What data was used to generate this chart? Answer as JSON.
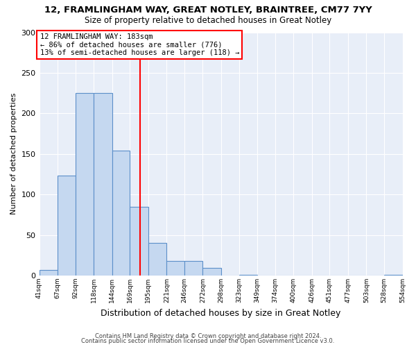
{
  "title": "12, FRAMLINGHAM WAY, GREAT NOTLEY, BRAINTREE, CM77 7YY",
  "subtitle": "Size of property relative to detached houses in Great Notley",
  "xlabel": "Distribution of detached houses by size in Great Notley",
  "ylabel": "Number of detached properties",
  "bin_edges": [
    41,
    67,
    92,
    118,
    144,
    169,
    195,
    221,
    246,
    272,
    298,
    323,
    349,
    374,
    400,
    426,
    451,
    477,
    503,
    528,
    554
  ],
  "bin_counts": [
    7,
    123,
    225,
    225,
    154,
    85,
    40,
    18,
    18,
    9,
    0,
    1,
    0,
    0,
    0,
    0,
    0,
    0,
    0,
    1
  ],
  "bar_color": "#c5d8f0",
  "bar_edge_color": "#5b8fc9",
  "vline_x": 183,
  "vline_color": "red",
  "ylim": [
    0,
    300
  ],
  "yticks": [
    0,
    50,
    100,
    150,
    200,
    250,
    300
  ],
  "annotation_title": "12 FRAMLINGHAM WAY: 183sqm",
  "annotation_line1": "← 86% of detached houses are smaller (776)",
  "annotation_line2": "13% of semi-detached houses are larger (118) →",
  "annotation_box_color": "red",
  "footnote1": "Contains HM Land Registry data © Crown copyright and database right 2024.",
  "footnote2": "Contains public sector information licensed under the Open Government Licence v3.0.",
  "background_color": "#ffffff",
  "plot_bg_color": "#e8eef8",
  "grid_color": "#ffffff",
  "tick_labels": [
    "41sqm",
    "67sqm",
    "92sqm",
    "118sqm",
    "144sqm",
    "169sqm",
    "195sqm",
    "221sqm",
    "246sqm",
    "272sqm",
    "298sqm",
    "323sqm",
    "349sqm",
    "374sqm",
    "400sqm",
    "426sqm",
    "451sqm",
    "477sqm",
    "503sqm",
    "528sqm",
    "554sqm"
  ]
}
